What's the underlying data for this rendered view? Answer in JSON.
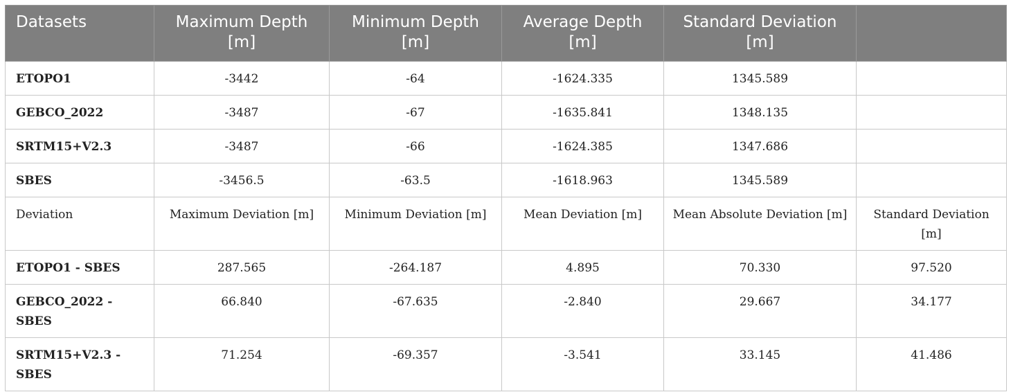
{
  "header": {
    "col1": "Datasets",
    "col2": "Maximum Depth [m]",
    "col3": "Minimum Depth [m]",
    "col4": "Average Depth [m]",
    "col5": "Standard Deviation [m]",
    "col6": ""
  },
  "depth_rows": [
    {
      "name": "ETOPO1",
      "max": "-3442",
      "min": "-64",
      "avg": "-1624.335",
      "std": "1345.589"
    },
    {
      "name": "GEBCO_2022",
      "max": "-3487",
      "min": "-67",
      "avg": "-1635.841",
      "std": "1348.135"
    },
    {
      "name": "SRTM15+V2.3",
      "max": "-3487",
      "min": "-66",
      "avg": "-1624.385",
      "std": "1347.686"
    },
    {
      "name": "SBES",
      "max": "-3456.5",
      "min": "-63.5",
      "avg": "-1618.963",
      "std": "1345.589"
    }
  ],
  "subheader": {
    "col1": "Deviation",
    "col2": "Maximum Deviation [m]",
    "col3": "Minimum Deviation [m]",
    "col4": "Mean Deviation [m]",
    "col5": "Mean Absolute Deviation [m]",
    "col6": "Standard Deviation [m]"
  },
  "deviation_rows": [
    {
      "name": "ETOPO1 - SBES",
      "max": "287.565",
      "min": "-264.187",
      "mean": "4.895",
      "mad": "70.330",
      "std": "97.520"
    },
    {
      "name": "GEBCO_2022 - SBES",
      "max": "66.840",
      "min": "-67.635",
      "mean": "-2.840",
      "mad": "29.667",
      "std": "34.177"
    },
    {
      "name": "SRTM15+V2.3 - SBES",
      "max": "71.254",
      "min": "-69.357",
      "mean": "-3.541",
      "mad": "33.145",
      "std": "41.486"
    }
  ]
}
